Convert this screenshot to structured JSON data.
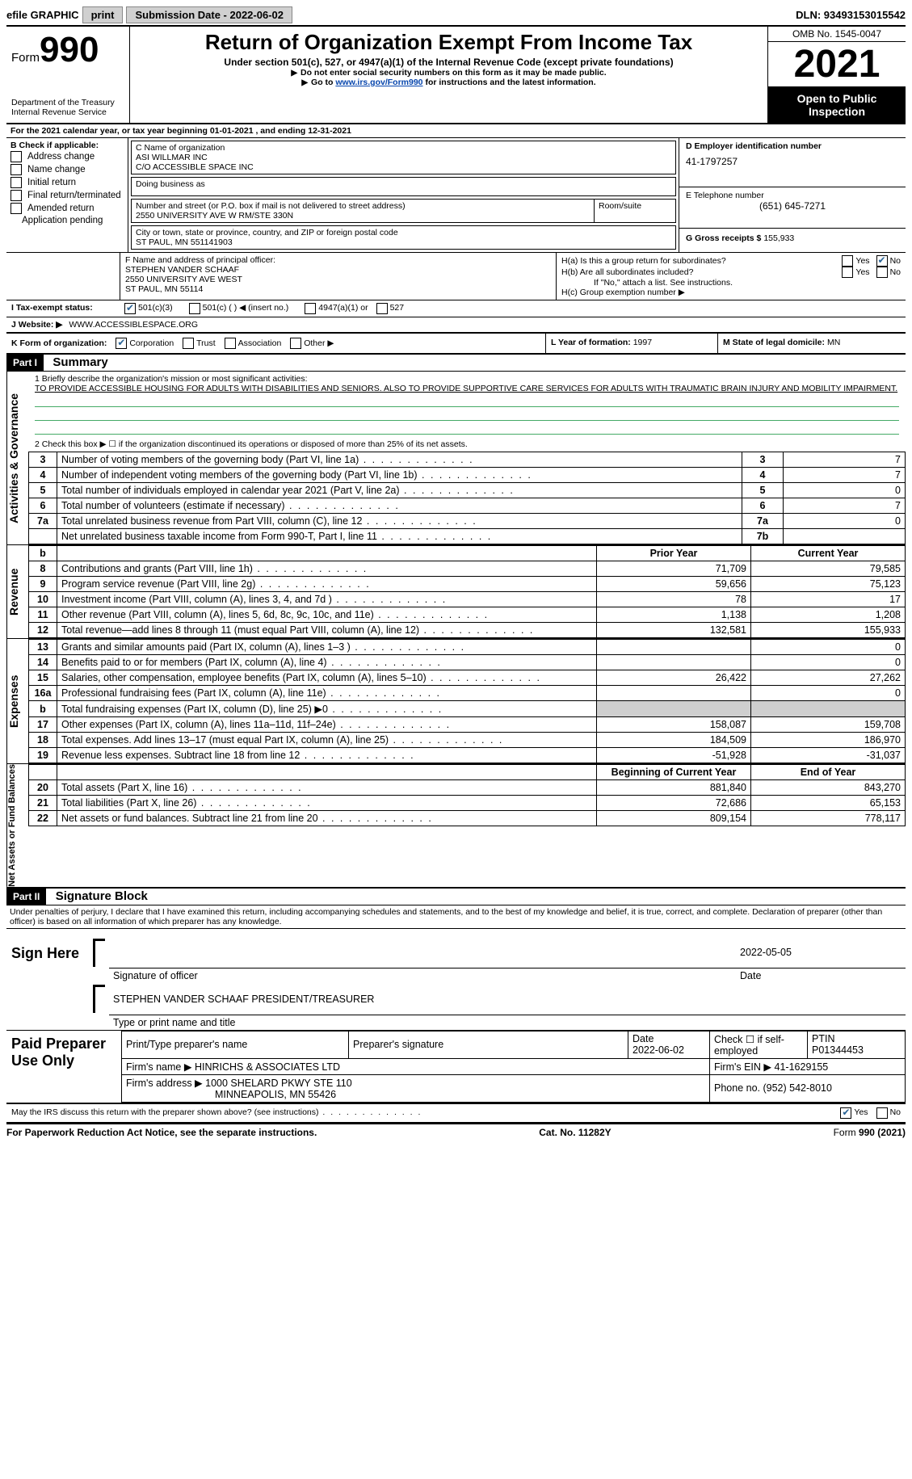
{
  "topbar": {
    "efile_label": "efile GRAPHIC",
    "print_btn": "print",
    "submission_label": "Submission Date - 2022-06-02",
    "dln_label": "DLN: 93493153015542"
  },
  "header": {
    "form_label": "Form",
    "form_number": "990",
    "dept_line1": "Department of the Treasury",
    "dept_line2": "Internal Revenue Service",
    "title": "Return of Organization Exempt From Income Tax",
    "subtitle": "Under section 501(c), 527, or 4947(a)(1) of the Internal Revenue Code (except private foundations)",
    "note1": "Do not enter social security numbers on this form as it may be made public.",
    "note2_prefix": "Go to ",
    "note2_link": "www.irs.gov/Form990",
    "note2_suffix": " for instructions and the latest information.",
    "omb": "OMB No. 1545-0047",
    "tax_year": "2021",
    "inspection": "Open to Public Inspection"
  },
  "line_a": "For the 2021 calendar year, or tax year beginning 01-01-2021   , and ending 12-31-2021",
  "section_b": {
    "header": "B Check if applicable:",
    "items": [
      "Address change",
      "Name change",
      "Initial return",
      "Final return/terminated",
      "Amended return",
      "Application pending"
    ]
  },
  "section_c": {
    "label_name": "C Name of organization",
    "org_line1": "ASI WILLMAR INC",
    "org_line2": "C/O ACCESSIBLE SPACE INC",
    "dba_label": "Doing business as",
    "addr_label": "Number and street (or P.O. box if mail is not delivered to street address)",
    "room_label": "Room/suite",
    "addr_value": "2550 UNIVERSITY AVE W RM/STE 330N",
    "city_label": "City or town, state or province, country, and ZIP or foreign postal code",
    "city_value": "ST PAUL, MN  551141903"
  },
  "section_d": {
    "label": "D Employer identification number",
    "value": "41-1797257"
  },
  "section_e": {
    "label": "E Telephone number",
    "value": "(651) 645-7271"
  },
  "section_g": {
    "label": "G Gross receipts $",
    "value": "155,933"
  },
  "section_f": {
    "label": "F  Name and address of principal officer:",
    "line1": "STEPHEN VANDER SCHAAF",
    "line2": "2550 UNIVERSITY AVE WEST",
    "line3": "ST PAUL, MN  55114"
  },
  "section_h": {
    "ha_label": "H(a)  Is this a group return for subordinates?",
    "hb_label": "H(b)  Are all subordinates included?",
    "hb_note": "If \"No,\" attach a list. See instructions.",
    "hc_label": "H(c)  Group exemption number ▶",
    "yes": "Yes",
    "no": "No"
  },
  "line_i": {
    "label": "I   Tax-exempt status:",
    "opt1": "501(c)(3)",
    "opt2": "501(c) (  ) ◀ (insert no.)",
    "opt3": "4947(a)(1) or",
    "opt4": "527"
  },
  "line_j": {
    "label": "J   Website: ▶",
    "value": "WWW.ACCESSIBLESPACE.ORG"
  },
  "line_k": {
    "label": "K Form of organization:",
    "opts": [
      "Corporation",
      "Trust",
      "Association",
      "Other ▶"
    ],
    "checked_idx": 0
  },
  "line_l": {
    "label": "L Year of formation:",
    "value": "1997"
  },
  "line_m": {
    "label": "M State of legal domicile:",
    "value": "MN"
  },
  "part1": {
    "hdr": "Part I",
    "title": "Summary",
    "q1_label": "1   Briefly describe the organization's mission or most significant activities:",
    "q1_text": "TO PROVIDE ACCESSIBLE HOUSING FOR ADULTS WITH DISABILITIES AND SENIORS. ALSO TO PROVIDE SUPPORTIVE CARE SERVICES FOR ADULTS WITH TRAUMATIC BRAIN INJURY AND MOBILITY IMPAIRMENT.",
    "q2": "2   Check this box ▶ ☐  if the organization discontinued its operations or disposed of more than 25% of its net assets.",
    "activities_label": "Activities & Governance",
    "rows_ag": [
      {
        "n": "3",
        "t": "Number of voting members of the governing body (Part VI, line 1a)",
        "box": "3",
        "v": "7"
      },
      {
        "n": "4",
        "t": "Number of independent voting members of the governing body (Part VI, line 1b)",
        "box": "4",
        "v": "7"
      },
      {
        "n": "5",
        "t": "Total number of individuals employed in calendar year 2021 (Part V, line 2a)",
        "box": "5",
        "v": "0"
      },
      {
        "n": "6",
        "t": "Total number of volunteers (estimate if necessary)",
        "box": "6",
        "v": "7"
      },
      {
        "n": "7a",
        "t": "Total unrelated business revenue from Part VIII, column (C), line 12",
        "box": "7a",
        "v": "0"
      },
      {
        "n": "",
        "t": "Net unrelated business taxable income from Form 990-T, Part I, line 11",
        "box": "7b",
        "v": ""
      }
    ],
    "col_prior": "Prior Year",
    "col_current": "Current Year",
    "revenue_label": "Revenue",
    "rows_rev": [
      {
        "n": "8",
        "t": "Contributions and grants (Part VIII, line 1h)",
        "p": "71,709",
        "c": "79,585"
      },
      {
        "n": "9",
        "t": "Program service revenue (Part VIII, line 2g)",
        "p": "59,656",
        "c": "75,123"
      },
      {
        "n": "10",
        "t": "Investment income (Part VIII, column (A), lines 3, 4, and 7d )",
        "p": "78",
        "c": "17"
      },
      {
        "n": "11",
        "t": "Other revenue (Part VIII, column (A), lines 5, 6d, 8c, 9c, 10c, and 11e)",
        "p": "1,138",
        "c": "1,208"
      },
      {
        "n": "12",
        "t": "Total revenue—add lines 8 through 11 (must equal Part VIII, column (A), line 12)",
        "p": "132,581",
        "c": "155,933"
      }
    ],
    "expenses_label": "Expenses",
    "rows_exp": [
      {
        "n": "13",
        "t": "Grants and similar amounts paid (Part IX, column (A), lines 1–3 )",
        "p": "",
        "c": "0"
      },
      {
        "n": "14",
        "t": "Benefits paid to or for members (Part IX, column (A), line 4)",
        "p": "",
        "c": "0"
      },
      {
        "n": "15",
        "t": "Salaries, other compensation, employee benefits (Part IX, column (A), lines 5–10)",
        "p": "26,422",
        "c": "27,262"
      },
      {
        "n": "16a",
        "t": "Professional fundraising fees (Part IX, column (A), line 11e)",
        "p": "",
        "c": "0"
      },
      {
        "n": "b",
        "t": "Total fundraising expenses (Part IX, column (D), line 25) ▶0",
        "p": "shade",
        "c": "shade"
      },
      {
        "n": "17",
        "t": "Other expenses (Part IX, column (A), lines 11a–11d, 11f–24e)",
        "p": "158,087",
        "c": "159,708"
      },
      {
        "n": "18",
        "t": "Total expenses. Add lines 13–17 (must equal Part IX, column (A), line 25)",
        "p": "184,509",
        "c": "186,970"
      },
      {
        "n": "19",
        "t": "Revenue less expenses. Subtract line 18 from line 12",
        "p": "-51,928",
        "c": "-31,037"
      }
    ],
    "net_label": "Net Assets or Fund Balances",
    "col_begin": "Beginning of Current Year",
    "col_end": "End of Year",
    "rows_net": [
      {
        "n": "20",
        "t": "Total assets (Part X, line 16)",
        "p": "881,840",
        "c": "843,270"
      },
      {
        "n": "21",
        "t": "Total liabilities (Part X, line 26)",
        "p": "72,686",
        "c": "65,153"
      },
      {
        "n": "22",
        "t": "Net assets or fund balances. Subtract line 21 from line 20",
        "p": "809,154",
        "c": "778,117"
      }
    ]
  },
  "part2": {
    "hdr": "Part II",
    "title": "Signature Block",
    "perjury": "Under penalties of perjury, I declare that I have examined this return, including accompanying schedules and statements, and to the best of my knowledge and belief, it is true, correct, and complete. Declaration of preparer (other than officer) is based on all information of which preparer has any knowledge.",
    "sign_here": "Sign Here",
    "sig_officer": "Signature of officer",
    "sig_date": "2022-05-05",
    "date_lbl": "Date",
    "officer_name": "STEPHEN VANDER SCHAAF  PRESIDENT/TREASURER",
    "type_name": "Type or print name and title",
    "paid_label": "Paid Preparer Use Only",
    "prep_name_lbl": "Print/Type preparer's name",
    "prep_sig_lbl": "Preparer's signature",
    "prep_date_lbl": "Date",
    "prep_date": "2022-06-02",
    "check_self": "Check ☐ if self-employed",
    "ptin_lbl": "PTIN",
    "ptin": "P01344453",
    "firm_name_lbl": "Firm's name   ▶",
    "firm_name": "HINRICHS & ASSOCIATES LTD",
    "firm_ein_lbl": "Firm's EIN ▶",
    "firm_ein": "41-1629155",
    "firm_addr_lbl": "Firm's address ▶",
    "firm_addr1": "1000 SHELARD PKWY STE 110",
    "firm_addr2": "MINNEAPOLIS, MN  55426",
    "phone_lbl": "Phone no.",
    "phone": "(952) 542-8010",
    "discuss": "May the IRS discuss this return with the preparer shown above? (see instructions)",
    "yes": "Yes",
    "no": "No"
  },
  "footer": {
    "left": "For Paperwork Reduction Act Notice, see the separate instructions.",
    "mid": "Cat. No. 11282Y",
    "right": "Form 990 (2021)"
  }
}
